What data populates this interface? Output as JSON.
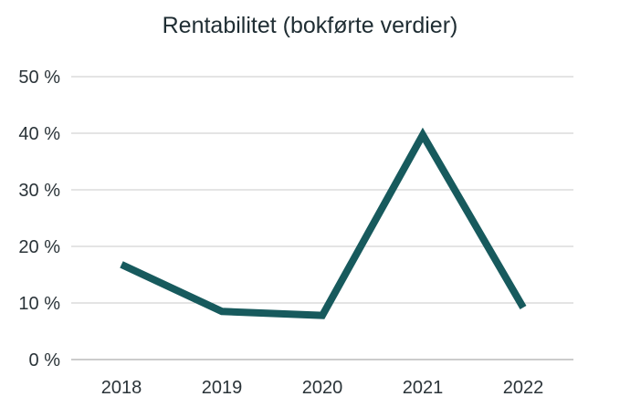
{
  "chart_data": {
    "type": "line",
    "title": "Rentabilitet (bokførte verdier)",
    "xlabel": "",
    "ylabel": "",
    "categories": [
      "2018",
      "2019",
      "2020",
      "2021",
      "2022"
    ],
    "series": [
      {
        "values": [
          16.8,
          8.5,
          7.8,
          39.7,
          9.2
        ]
      }
    ],
    "ylim": [
      0,
      50
    ],
    "yticks": [
      0,
      10,
      20,
      30,
      40,
      50
    ],
    "ytick_labels": [
      "0 %",
      "10 %",
      "20 %",
      "30 %",
      "40 %",
      "50 %"
    ],
    "grid": true,
    "line_color": "#175a5d",
    "grid_color": "#c8c8c8"
  }
}
